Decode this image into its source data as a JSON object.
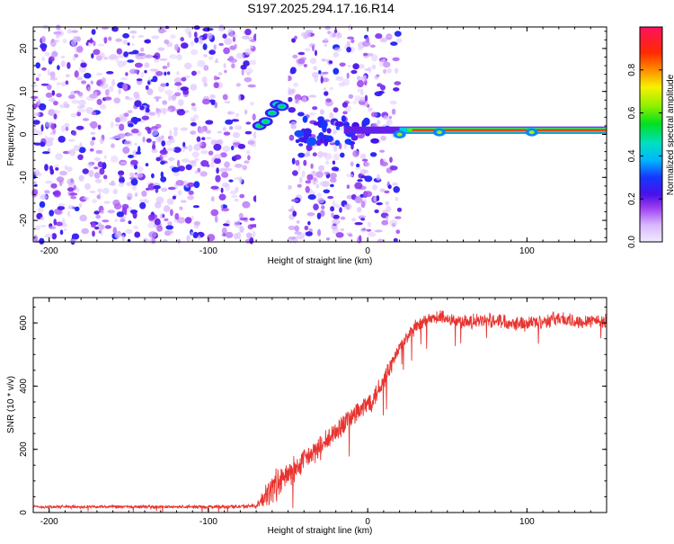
{
  "figure_title": "S197.2025.294.17.16.R14",
  "chart_data": [
    {
      "type": "heatmap",
      "name": "spectrogram",
      "xlabel": "Height of straight line (km)",
      "ylabel": "Frequency (Hz)",
      "xlim": [
        -210,
        150
      ],
      "ylim": [
        -25,
        25
      ],
      "x_ticks": [
        -200,
        -100,
        0,
        100
      ],
      "x_tick_labels": [
        "-200",
        "-100",
        "0",
        "100"
      ],
      "y_ticks": [
        -20,
        -10,
        0,
        10,
        20
      ],
      "y_tick_labels": [
        "-20",
        "-10",
        "0",
        "10",
        "20"
      ],
      "colorbar": {
        "label": "Normalized spectral amplitude",
        "range": [
          0,
          1
        ],
        "ticks": [
          0,
          0.2,
          0.4,
          0.6,
          0.8
        ],
        "tick_labels": [
          "0.0",
          "0.2",
          "0.4",
          "0.6",
          "0.8"
        ]
      },
      "features": [
        {
          "label": "noise_field",
          "x_range": [
            -210,
            20
          ],
          "y_range": [
            -25,
            25
          ],
          "amplitude": 0.15
        },
        {
          "label": "gap_no_data",
          "x_range": [
            -70,
            -50
          ],
          "y_range": [
            -25,
            25
          ],
          "amplitude": 0
        },
        {
          "label": "blob_track",
          "points": [
            [
              -68,
              2
            ],
            [
              -64,
              3
            ],
            [
              -60,
              5
            ],
            [
              -57,
              7
            ],
            [
              -54,
              6.5
            ]
          ],
          "amplitude": 0.35
        },
        {
          "label": "carrier_line",
          "x_range": [
            -15,
            150
          ],
          "y": 1,
          "amplitude": 0.9
        }
      ]
    },
    {
      "type": "line",
      "name": "snr",
      "xlabel": "Height of straight line (km)",
      "ylabel": "SNR (10 * v/v)",
      "xlim": [
        -210,
        150
      ],
      "ylim": [
        0,
        680
      ],
      "x_ticks": [
        -200,
        -100,
        0,
        100
      ],
      "x_tick_labels": [
        "-200",
        "-100",
        "0",
        "100"
      ],
      "y_ticks": [
        0,
        200,
        400,
        600
      ],
      "y_tick_labels": [
        "0",
        "200",
        "400",
        "600"
      ],
      "color": "#e8332f",
      "series": [
        {
          "name": "SNR",
          "x": [
            -210,
            -150,
            -100,
            -70,
            -65,
            -60,
            -55,
            -50,
            -45,
            -40,
            -35,
            -30,
            -25,
            -20,
            -15,
            -10,
            -5,
            0,
            5,
            10,
            15,
            20,
            25,
            30,
            35,
            40,
            45,
            50,
            55,
            60,
            70,
            80,
            90,
            100,
            110,
            120,
            130,
            140,
            150
          ],
          "values": [
            18,
            18,
            18,
            20,
            45,
            80,
            95,
            120,
            140,
            165,
            185,
            205,
            225,
            255,
            285,
            305,
            320,
            345,
            375,
            420,
            470,
            520,
            555,
            585,
            600,
            612,
            618,
            615,
            608,
            602,
            605,
            610,
            602,
            598,
            606,
            615,
            602,
            610,
            604
          ],
          "noise_amplitude": [
            6,
            6,
            6,
            8,
            40,
            60,
            60,
            50,
            50,
            45,
            45,
            45,
            45,
            45,
            45,
            45,
            45,
            45,
            45,
            40,
            35,
            30,
            30,
            28,
            28,
            28,
            28,
            28,
            28,
            28,
            28,
            28,
            28,
            28,
            28,
            28,
            28,
            28,
            28
          ]
        }
      ]
    }
  ]
}
